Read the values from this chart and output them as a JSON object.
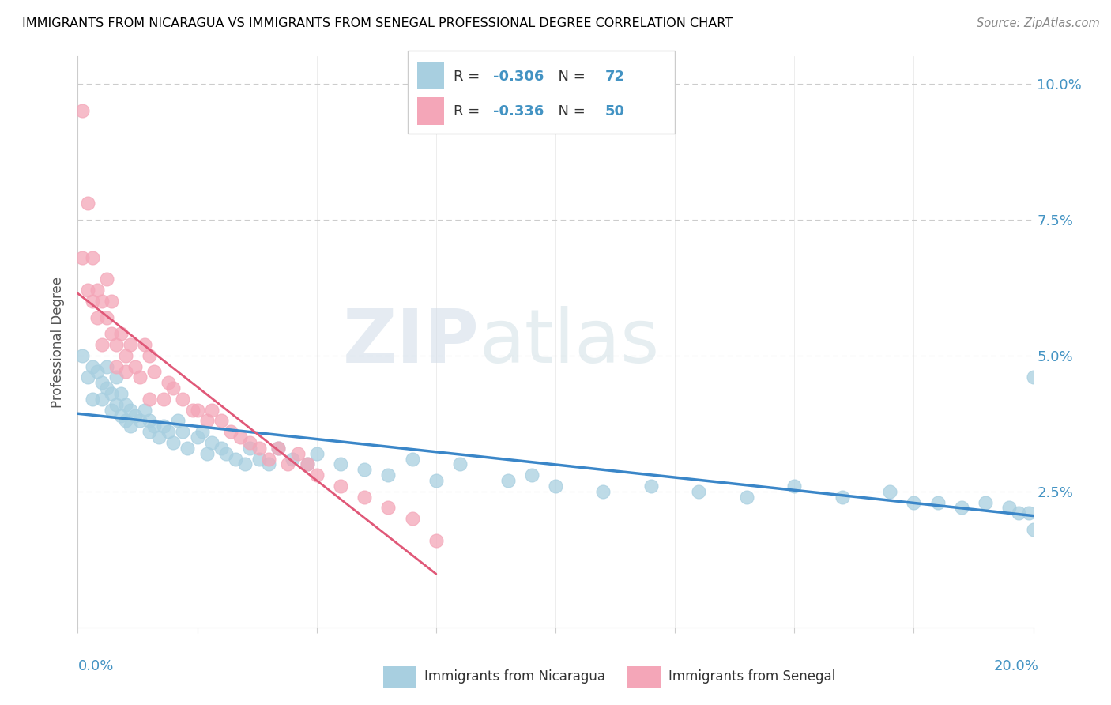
{
  "title": "IMMIGRANTS FROM NICARAGUA VS IMMIGRANTS FROM SENEGAL PROFESSIONAL DEGREE CORRELATION CHART",
  "source": "Source: ZipAtlas.com",
  "ylabel": "Professional Degree",
  "nicaragua_color": "#a8cfe0",
  "senegal_color": "#f4a6b8",
  "regression_nicaragua_color": "#3a86c8",
  "regression_senegal_color": "#e05878",
  "watermark_zip": "ZIP",
  "watermark_atlas": "atlas",
  "nicaragua_x": [
    0.001,
    0.002,
    0.003,
    0.003,
    0.004,
    0.005,
    0.005,
    0.006,
    0.006,
    0.007,
    0.007,
    0.008,
    0.008,
    0.009,
    0.009,
    0.01,
    0.01,
    0.011,
    0.011,
    0.012,
    0.013,
    0.014,
    0.015,
    0.015,
    0.016,
    0.017,
    0.018,
    0.019,
    0.02,
    0.021,
    0.022,
    0.023,
    0.025,
    0.026,
    0.027,
    0.028,
    0.03,
    0.031,
    0.033,
    0.035,
    0.036,
    0.038,
    0.04,
    0.042,
    0.045,
    0.048,
    0.05,
    0.055,
    0.06,
    0.065,
    0.07,
    0.075,
    0.08,
    0.09,
    0.095,
    0.1,
    0.11,
    0.12,
    0.13,
    0.14,
    0.15,
    0.16,
    0.17,
    0.175,
    0.18,
    0.185,
    0.19,
    0.195,
    0.197,
    0.199,
    0.2,
    0.2
  ],
  "nicaragua_y": [
    0.05,
    0.046,
    0.048,
    0.042,
    0.047,
    0.045,
    0.042,
    0.048,
    0.044,
    0.043,
    0.04,
    0.046,
    0.041,
    0.043,
    0.039,
    0.041,
    0.038,
    0.04,
    0.037,
    0.039,
    0.038,
    0.04,
    0.036,
    0.038,
    0.037,
    0.035,
    0.037,
    0.036,
    0.034,
    0.038,
    0.036,
    0.033,
    0.035,
    0.036,
    0.032,
    0.034,
    0.033,
    0.032,
    0.031,
    0.03,
    0.033,
    0.031,
    0.03,
    0.033,
    0.031,
    0.03,
    0.032,
    0.03,
    0.029,
    0.028,
    0.031,
    0.027,
    0.03,
    0.027,
    0.028,
    0.026,
    0.025,
    0.026,
    0.025,
    0.024,
    0.026,
    0.024,
    0.025,
    0.023,
    0.023,
    0.022,
    0.023,
    0.022,
    0.021,
    0.021,
    0.018,
    0.046
  ],
  "senegal_x": [
    0.001,
    0.001,
    0.002,
    0.002,
    0.003,
    0.003,
    0.004,
    0.004,
    0.005,
    0.005,
    0.006,
    0.006,
    0.007,
    0.007,
    0.008,
    0.008,
    0.009,
    0.01,
    0.01,
    0.011,
    0.012,
    0.013,
    0.014,
    0.015,
    0.015,
    0.016,
    0.018,
    0.019,
    0.02,
    0.022,
    0.024,
    0.025,
    0.027,
    0.028,
    0.03,
    0.032,
    0.034,
    0.036,
    0.038,
    0.04,
    0.042,
    0.044,
    0.046,
    0.048,
    0.05,
    0.055,
    0.06,
    0.065,
    0.07,
    0.075
  ],
  "senegal_y": [
    0.095,
    0.068,
    0.078,
    0.062,
    0.068,
    0.06,
    0.062,
    0.057,
    0.06,
    0.052,
    0.064,
    0.057,
    0.06,
    0.054,
    0.052,
    0.048,
    0.054,
    0.05,
    0.047,
    0.052,
    0.048,
    0.046,
    0.052,
    0.05,
    0.042,
    0.047,
    0.042,
    0.045,
    0.044,
    0.042,
    0.04,
    0.04,
    0.038,
    0.04,
    0.038,
    0.036,
    0.035,
    0.034,
    0.033,
    0.031,
    0.033,
    0.03,
    0.032,
    0.03,
    0.028,
    0.026,
    0.024,
    0.022,
    0.02,
    0.016
  ],
  "xlim": [
    0.0,
    0.2
  ],
  "ylim": [
    0.0,
    0.105
  ],
  "x_ticks": [
    0.0,
    0.025,
    0.05,
    0.075,
    0.1,
    0.125,
    0.15,
    0.175,
    0.2
  ],
  "y_ticks": [
    0.0,
    0.025,
    0.05,
    0.075,
    0.1
  ],
  "y_tick_labels_right": [
    "",
    "2.5%",
    "5.0%",
    "7.5%",
    "10.0%"
  ],
  "tick_color": "#4393c3",
  "grid_color": "#cccccc",
  "legend_r1": "-0.306",
  "legend_n1": "72",
  "legend_r2": "-0.336",
  "legend_n2": "50"
}
